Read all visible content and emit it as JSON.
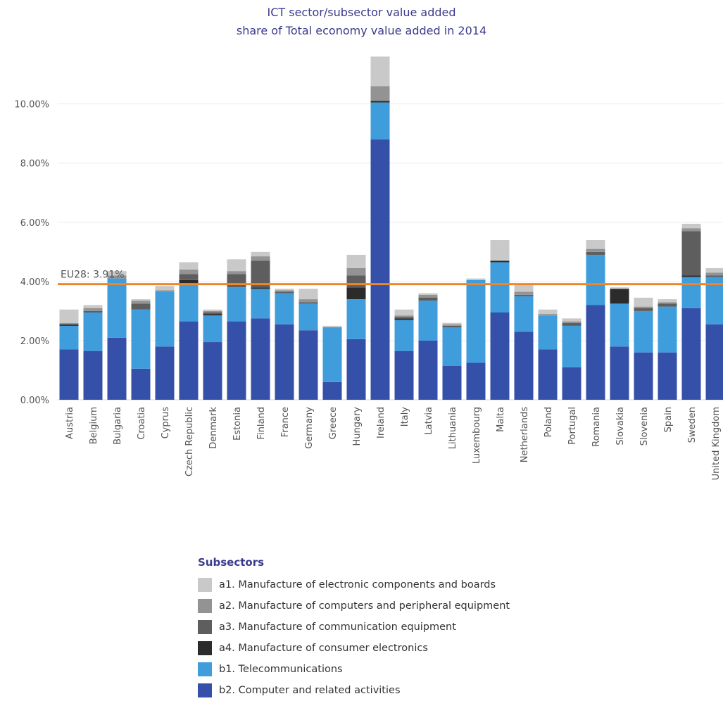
{
  "chart_data": {
    "type": "bar",
    "stacked": true,
    "title": "ICT sector/subsector value added",
    "subtitle": "share of Total economy value added in  2014",
    "y_ticks": [
      "0.00%",
      "2.00%",
      "4.00%",
      "6.00%",
      "8.00%",
      "10.00%"
    ],
    "ylim": [
      0,
      11.8
    ],
    "grid": true,
    "reference_line": {
      "value": 3.91,
      "label": "EU28: 3.91%",
      "color": "#f0862a"
    },
    "categories": [
      "Austria",
      "Belgium",
      "Bulgaria",
      "Croatia",
      "Cyprus",
      "Czech Republic",
      "Denmark",
      "Estonia",
      "Finland",
      "France",
      "Germany",
      "Greece",
      "Hungary",
      "Ireland",
      "Italy",
      "Latvia",
      "Lithuania",
      "Luxembourg",
      "Malta",
      "Netherlands",
      "Poland",
      "Portugal",
      "Romania",
      "Slovakia",
      "Slovenia",
      "Spain",
      "Sweden",
      "United Kingdom"
    ],
    "legend_title": "Subsectors",
    "series": [
      {
        "name": "b2. Computer and related activities",
        "color": "#3450a8",
        "values": [
          1.7,
          1.65,
          2.1,
          1.05,
          1.8,
          2.65,
          1.95,
          2.65,
          2.75,
          2.55,
          2.35,
          0.6,
          2.05,
          8.8,
          1.65,
          2.0,
          1.15,
          1.25,
          2.95,
          2.3,
          1.7,
          1.1,
          3.2,
          1.8,
          1.6,
          1.6,
          3.1,
          2.55
        ]
      },
      {
        "name": "b1. Telecommunications",
        "color": "#3f9ddc",
        "values": [
          0.8,
          1.3,
          2.0,
          2.0,
          1.85,
          1.25,
          0.9,
          1.15,
          1.0,
          1.05,
          0.9,
          1.85,
          1.35,
          1.25,
          1.05,
          1.35,
          1.3,
          2.8,
          1.7,
          1.2,
          1.15,
          1.4,
          1.7,
          1.45,
          1.4,
          1.55,
          1.05,
          1.6
        ]
      },
      {
        "name": "a4. Manufacture of consumer electronics",
        "color": "#2b2b2b",
        "values": [
          0.05,
          0.0,
          0.0,
          0.0,
          0.0,
          0.15,
          0.05,
          0.0,
          0.05,
          0.0,
          0.0,
          0.0,
          0.4,
          0.05,
          0.05,
          0.0,
          0.0,
          0.0,
          0.05,
          0.0,
          0.0,
          0.0,
          0.0,
          0.5,
          0.0,
          0.0,
          0.05,
          0.0
        ]
      },
      {
        "name": "a3. Manufacture of communication equipment",
        "color": "#5e5e5e",
        "values": [
          0.0,
          0.05,
          0.0,
          0.2,
          0.0,
          0.2,
          0.05,
          0.45,
          0.9,
          0.05,
          0.05,
          0.0,
          0.4,
          0.0,
          0.05,
          0.1,
          0.05,
          0.0,
          0.0,
          0.05,
          0.0,
          0.1,
          0.1,
          0.0,
          0.1,
          0.1,
          1.5,
          0.05
        ]
      },
      {
        "name": "a2. Manufacture of computers and peripheral equipment",
        "color": "#939393",
        "values": [
          0.05,
          0.1,
          0.1,
          0.1,
          0.05,
          0.15,
          0.05,
          0.1,
          0.15,
          0.05,
          0.1,
          0.0,
          0.25,
          0.5,
          0.05,
          0.1,
          0.05,
          0.0,
          0.0,
          0.1,
          0.05,
          0.05,
          0.1,
          0.0,
          0.05,
          0.05,
          0.1,
          0.1
        ]
      },
      {
        "name": "a1. Manufacture of electronic components and boards",
        "color": "#c9c9c9",
        "values": [
          0.45,
          0.1,
          0.15,
          0.05,
          0.15,
          0.25,
          0.05,
          0.4,
          0.15,
          0.05,
          0.35,
          0.05,
          0.45,
          1.0,
          0.2,
          0.05,
          0.05,
          0.05,
          0.7,
          0.25,
          0.15,
          0.1,
          0.3,
          0.05,
          0.3,
          0.1,
          0.15,
          0.15
        ]
      }
    ]
  }
}
